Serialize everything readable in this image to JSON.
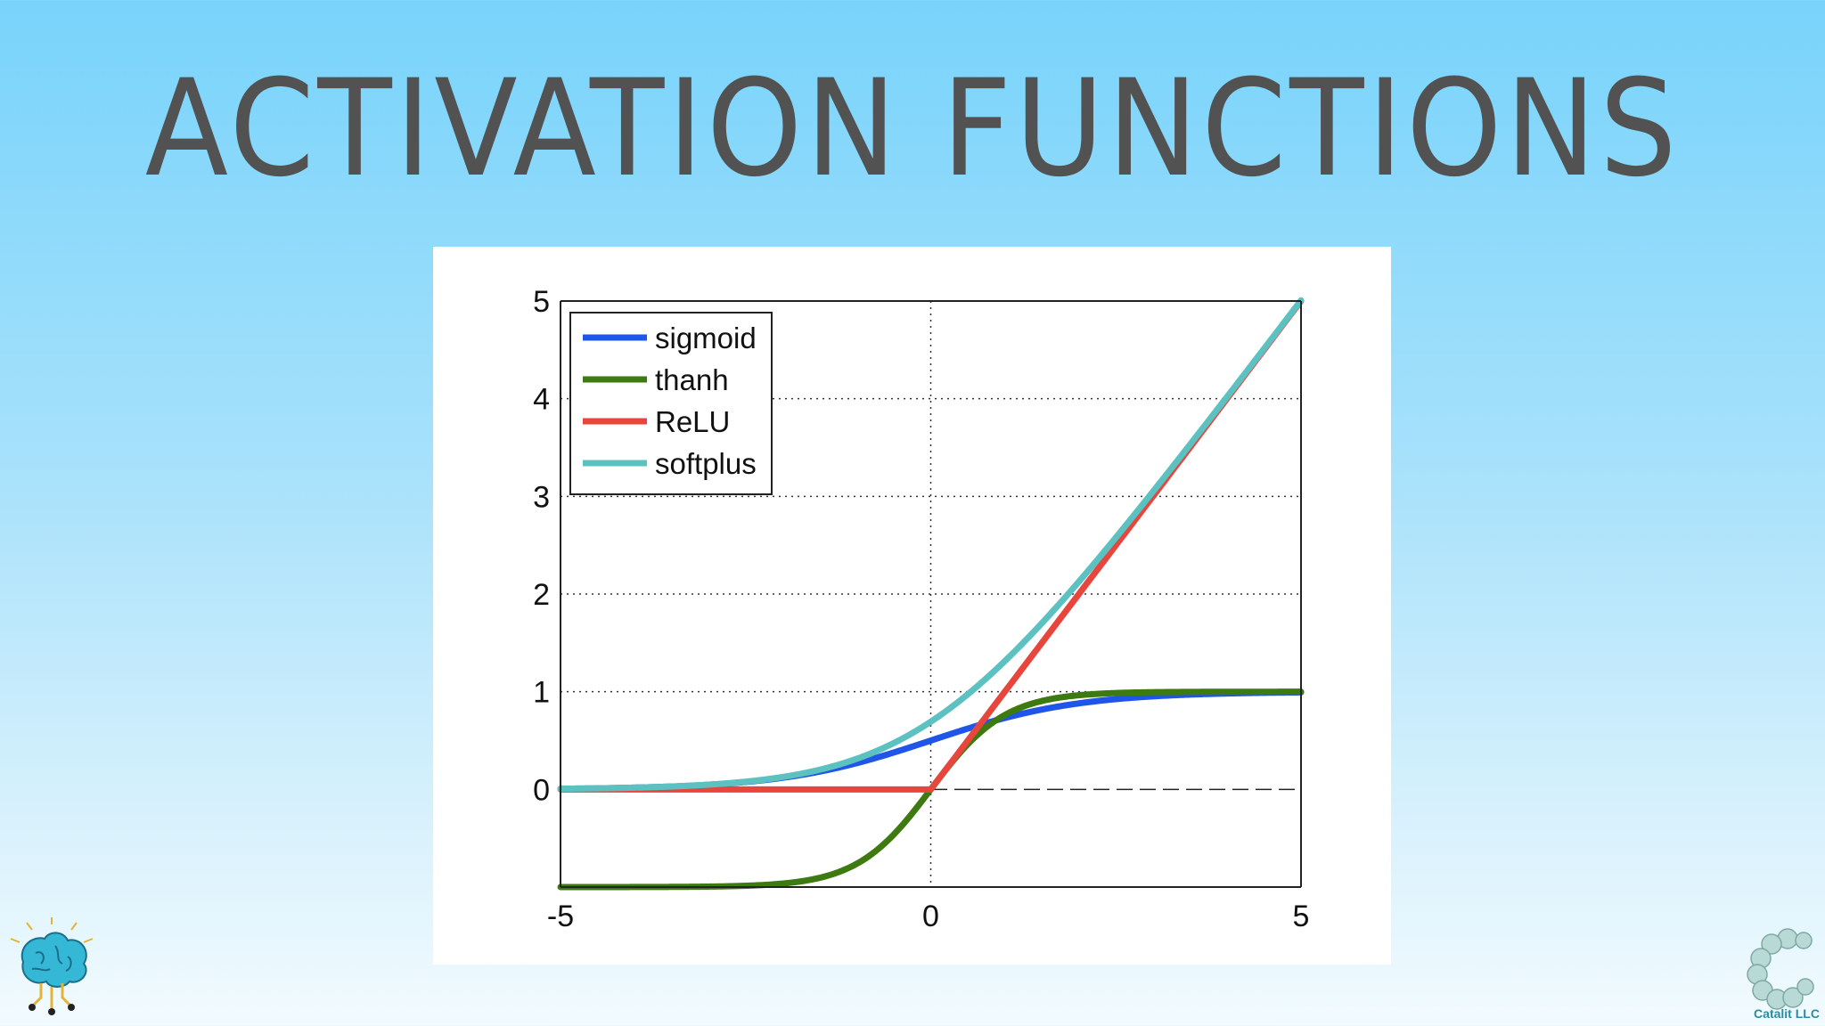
{
  "slide": {
    "title": "ACTIVATION FUNCTIONS"
  },
  "branding": {
    "left_logo_icon": "brain-circuit-icon",
    "right_logo_icon": "catalit-molecule-icon",
    "right_logo_text": "Catalit LLC"
  },
  "chart_data": {
    "type": "line",
    "title": "",
    "xlabel": "",
    "ylabel": "",
    "xlim": [
      -5,
      5
    ],
    "ylim": [
      -1,
      5
    ],
    "x_ticks": [
      "-5",
      "0",
      "5"
    ],
    "y_ticks": [
      "0",
      "1",
      "2",
      "3",
      "4",
      "5"
    ],
    "grid": true,
    "legend_position": "top-left",
    "x": [
      -5,
      -4.5,
      -4,
      -3.5,
      -3,
      -2.5,
      -2,
      -1.5,
      -1,
      -0.5,
      0,
      0.5,
      1,
      1.5,
      2,
      2.5,
      3,
      3.5,
      4,
      4.5,
      5
    ],
    "series": [
      {
        "name": "sigmoid",
        "color": "#1f55e8",
        "values": [
          0.007,
          0.011,
          0.018,
          0.029,
          0.047,
          0.076,
          0.119,
          0.182,
          0.269,
          0.378,
          0.5,
          0.622,
          0.731,
          0.818,
          0.881,
          0.924,
          0.953,
          0.971,
          0.982,
          0.989,
          0.993
        ]
      },
      {
        "name": "thanh",
        "color": "#3d7a10",
        "values": [
          -1.0,
          -1.0,
          -0.999,
          -0.998,
          -0.995,
          -0.987,
          -0.964,
          -0.905,
          -0.762,
          -0.462,
          0.0,
          0.462,
          0.762,
          0.905,
          0.964,
          0.987,
          0.995,
          0.998,
          0.999,
          1.0,
          1.0
        ]
      },
      {
        "name": "ReLU",
        "color": "#e8453c",
        "values": [
          0,
          0,
          0,
          0,
          0,
          0,
          0,
          0,
          0,
          0,
          0,
          0.5,
          1,
          1.5,
          2,
          2.5,
          3,
          3.5,
          4,
          4.5,
          5
        ]
      },
      {
        "name": "softplus",
        "color": "#5cc1c1",
        "values": [
          0.007,
          0.011,
          0.018,
          0.03,
          0.049,
          0.079,
          0.127,
          0.201,
          0.313,
          0.474,
          0.693,
          0.974,
          1.313,
          1.701,
          2.127,
          2.579,
          3.049,
          3.53,
          4.018,
          4.511,
          5.007
        ]
      }
    ]
  }
}
